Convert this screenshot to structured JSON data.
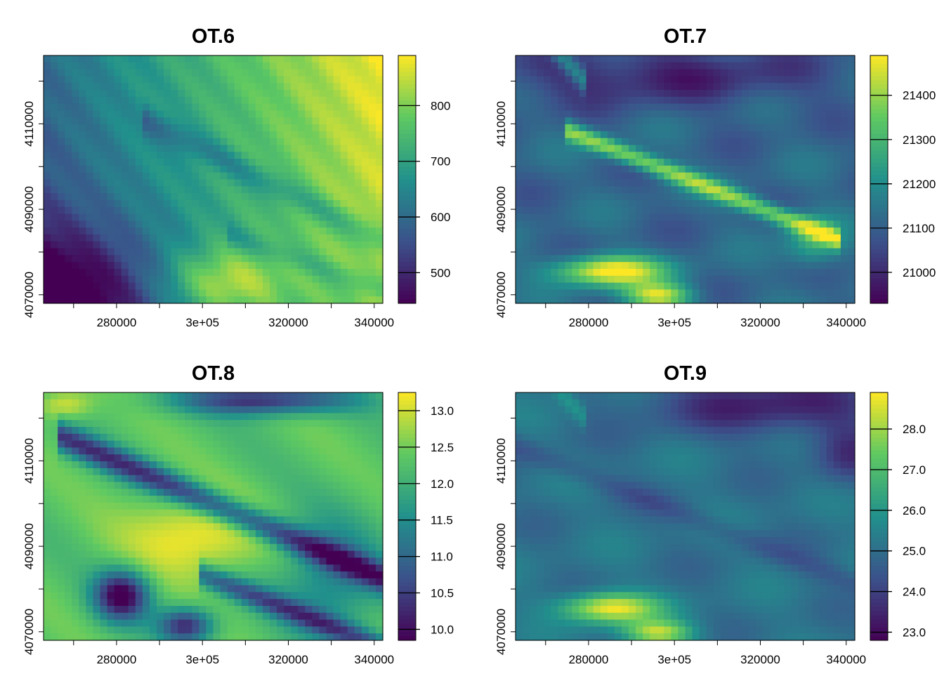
{
  "chart_data": [
    {
      "type": "heatmap",
      "title": "OT.6",
      "x_ticks": [
        280000,
        300000,
        320000,
        340000
      ],
      "x_tick_labels": [
        "280000",
        "3e+05",
        "320000",
        "340000"
      ],
      "xlim": [
        263000,
        342000
      ],
      "y_ticks": [
        4070000,
        4090000,
        4110000
      ],
      "y_tick_labels": [
        "4070000",
        "4090000",
        "4110000"
      ],
      "ylim": [
        4068000,
        4126000
      ],
      "colorbar": {
        "range": [
          445,
          890
        ],
        "ticks": [
          500,
          600,
          700,
          800
        ],
        "tick_labels": [
          "500",
          "600",
          "700",
          "800"
        ]
      },
      "colormap": [
        "#440154",
        "#3b528b",
        "#21918c",
        "#5ec962",
        "#fde725"
      ],
      "legend": "right"
    },
    {
      "type": "heatmap",
      "title": "OT.7",
      "x_ticks": [
        280000,
        300000,
        320000,
        340000
      ],
      "x_tick_labels": [
        "280000",
        "3e+05",
        "320000",
        "340000"
      ],
      "xlim": [
        263000,
        342000
      ],
      "y_ticks": [
        4070000,
        4090000,
        4110000
      ],
      "y_tick_labels": [
        "4070000",
        "4090000",
        "4110000"
      ],
      "ylim": [
        4068000,
        4126000
      ],
      "colorbar": {
        "range": [
          20930,
          21490
        ],
        "ticks": [
          21000,
          21100,
          21200,
          21300,
          21400
        ],
        "tick_labels": [
          "21000",
          "21100",
          "21200",
          "21300",
          "21400"
        ]
      },
      "colormap": [
        "#440154",
        "#3b528b",
        "#21918c",
        "#5ec962",
        "#fde725"
      ],
      "legend": "right"
    },
    {
      "type": "heatmap",
      "title": "OT.8",
      "x_ticks": [
        280000,
        300000,
        320000,
        340000
      ],
      "x_tick_labels": [
        "280000",
        "3e+05",
        "320000",
        "340000"
      ],
      "xlim": [
        263000,
        342000
      ],
      "y_ticks": [
        4070000,
        4090000,
        4110000
      ],
      "y_tick_labels": [
        "4070000",
        "4090000",
        "4110000"
      ],
      "ylim": [
        4068000,
        4126000
      ],
      "colorbar": {
        "range": [
          9.85,
          13.25
        ],
        "ticks": [
          10.0,
          10.5,
          11.0,
          11.5,
          12.0,
          12.5,
          13.0
        ],
        "tick_labels": [
          "10.0",
          "10.5",
          "11.0",
          "11.5",
          "12.0",
          "12.5",
          "13.0"
        ]
      },
      "colormap": [
        "#440154",
        "#3b528b",
        "#21918c",
        "#5ec962",
        "#fde725"
      ],
      "legend": "right"
    },
    {
      "type": "heatmap",
      "title": "OT.9",
      "x_ticks": [
        280000,
        300000,
        320000,
        340000
      ],
      "x_tick_labels": [
        "280000",
        "3e+05",
        "320000",
        "340000"
      ],
      "xlim": [
        263000,
        342000
      ],
      "y_ticks": [
        4070000,
        4090000,
        4110000
      ],
      "y_tick_labels": [
        "4070000",
        "4090000",
        "4110000"
      ],
      "ylim": [
        4068000,
        4126000
      ],
      "colorbar": {
        "range": [
          22.8,
          28.9
        ],
        "ticks": [
          23.0,
          24.0,
          25.0,
          26.0,
          27.0,
          28.0
        ],
        "tick_labels": [
          "23.0",
          "24.0",
          "25.0",
          "26.0",
          "27.0",
          "28.0"
        ]
      },
      "colormap": [
        "#440154",
        "#3b528b",
        "#21918c",
        "#5ec962",
        "#fde725"
      ],
      "legend": "right"
    }
  ]
}
